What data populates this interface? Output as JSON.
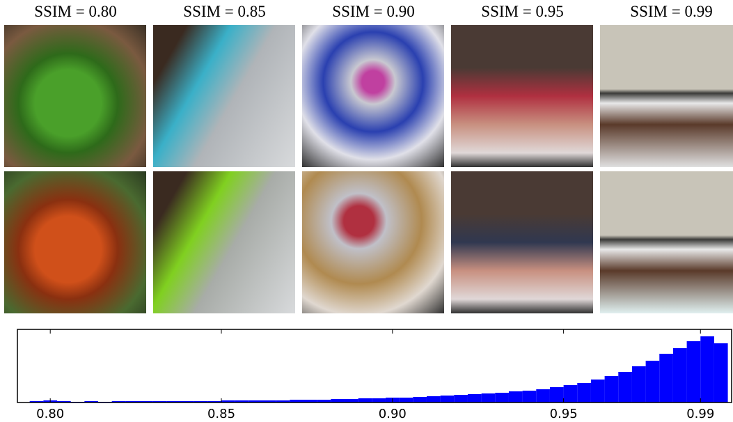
{
  "panels": [
    {
      "title": "SSIM = 0.80"
    },
    {
      "title": "SSIM = 0.85"
    },
    {
      "title": "SSIM = 0.90"
    },
    {
      "title": "SSIM = 0.95"
    },
    {
      "title": "SSIM = 0.99"
    }
  ],
  "chart_data": {
    "type": "histogram",
    "color": "#0000ff",
    "bins": [
      0.79,
      0.794,
      0.798,
      0.802,
      0.806,
      0.81,
      0.814,
      0.818,
      0.822,
      0.826,
      0.83,
      0.834,
      0.838,
      0.842,
      0.846,
      0.85,
      0.854,
      0.858,
      0.862,
      0.866,
      0.87,
      0.874,
      0.878,
      0.882,
      0.886,
      0.89,
      0.894,
      0.898,
      0.902,
      0.906,
      0.91,
      0.914,
      0.918,
      0.922,
      0.926,
      0.93,
      0.934,
      0.938,
      0.942,
      0.946,
      0.95,
      0.954,
      0.958,
      0.962,
      0.966,
      0.97,
      0.974,
      0.978,
      0.982,
      0.986,
      0.99,
      0.994,
      0.998
    ],
    "values": [
      0,
      2,
      3,
      2,
      1,
      2,
      1,
      2,
      2,
      2,
      2,
      2,
      2,
      2,
      2,
      3,
      3,
      3,
      3,
      3,
      4,
      4,
      4,
      5,
      5,
      6,
      6,
      7,
      7,
      8,
      9,
      10,
      11,
      12,
      13,
      14,
      16,
      17,
      19,
      22,
      25,
      28,
      33,
      38,
      44,
      52,
      60,
      70,
      78,
      88,
      95,
      85
    ],
    "xlim": [
      0.7904,
      0.9991
    ],
    "xticks": [
      {
        "value": 0.8,
        "label": "0.80"
      },
      0.85,
      {
        "value": 0.9,
        "label": "0.90"
      },
      0.95,
      0.99
    ],
    "ylim": [
      0,
      105
    ]
  }
}
